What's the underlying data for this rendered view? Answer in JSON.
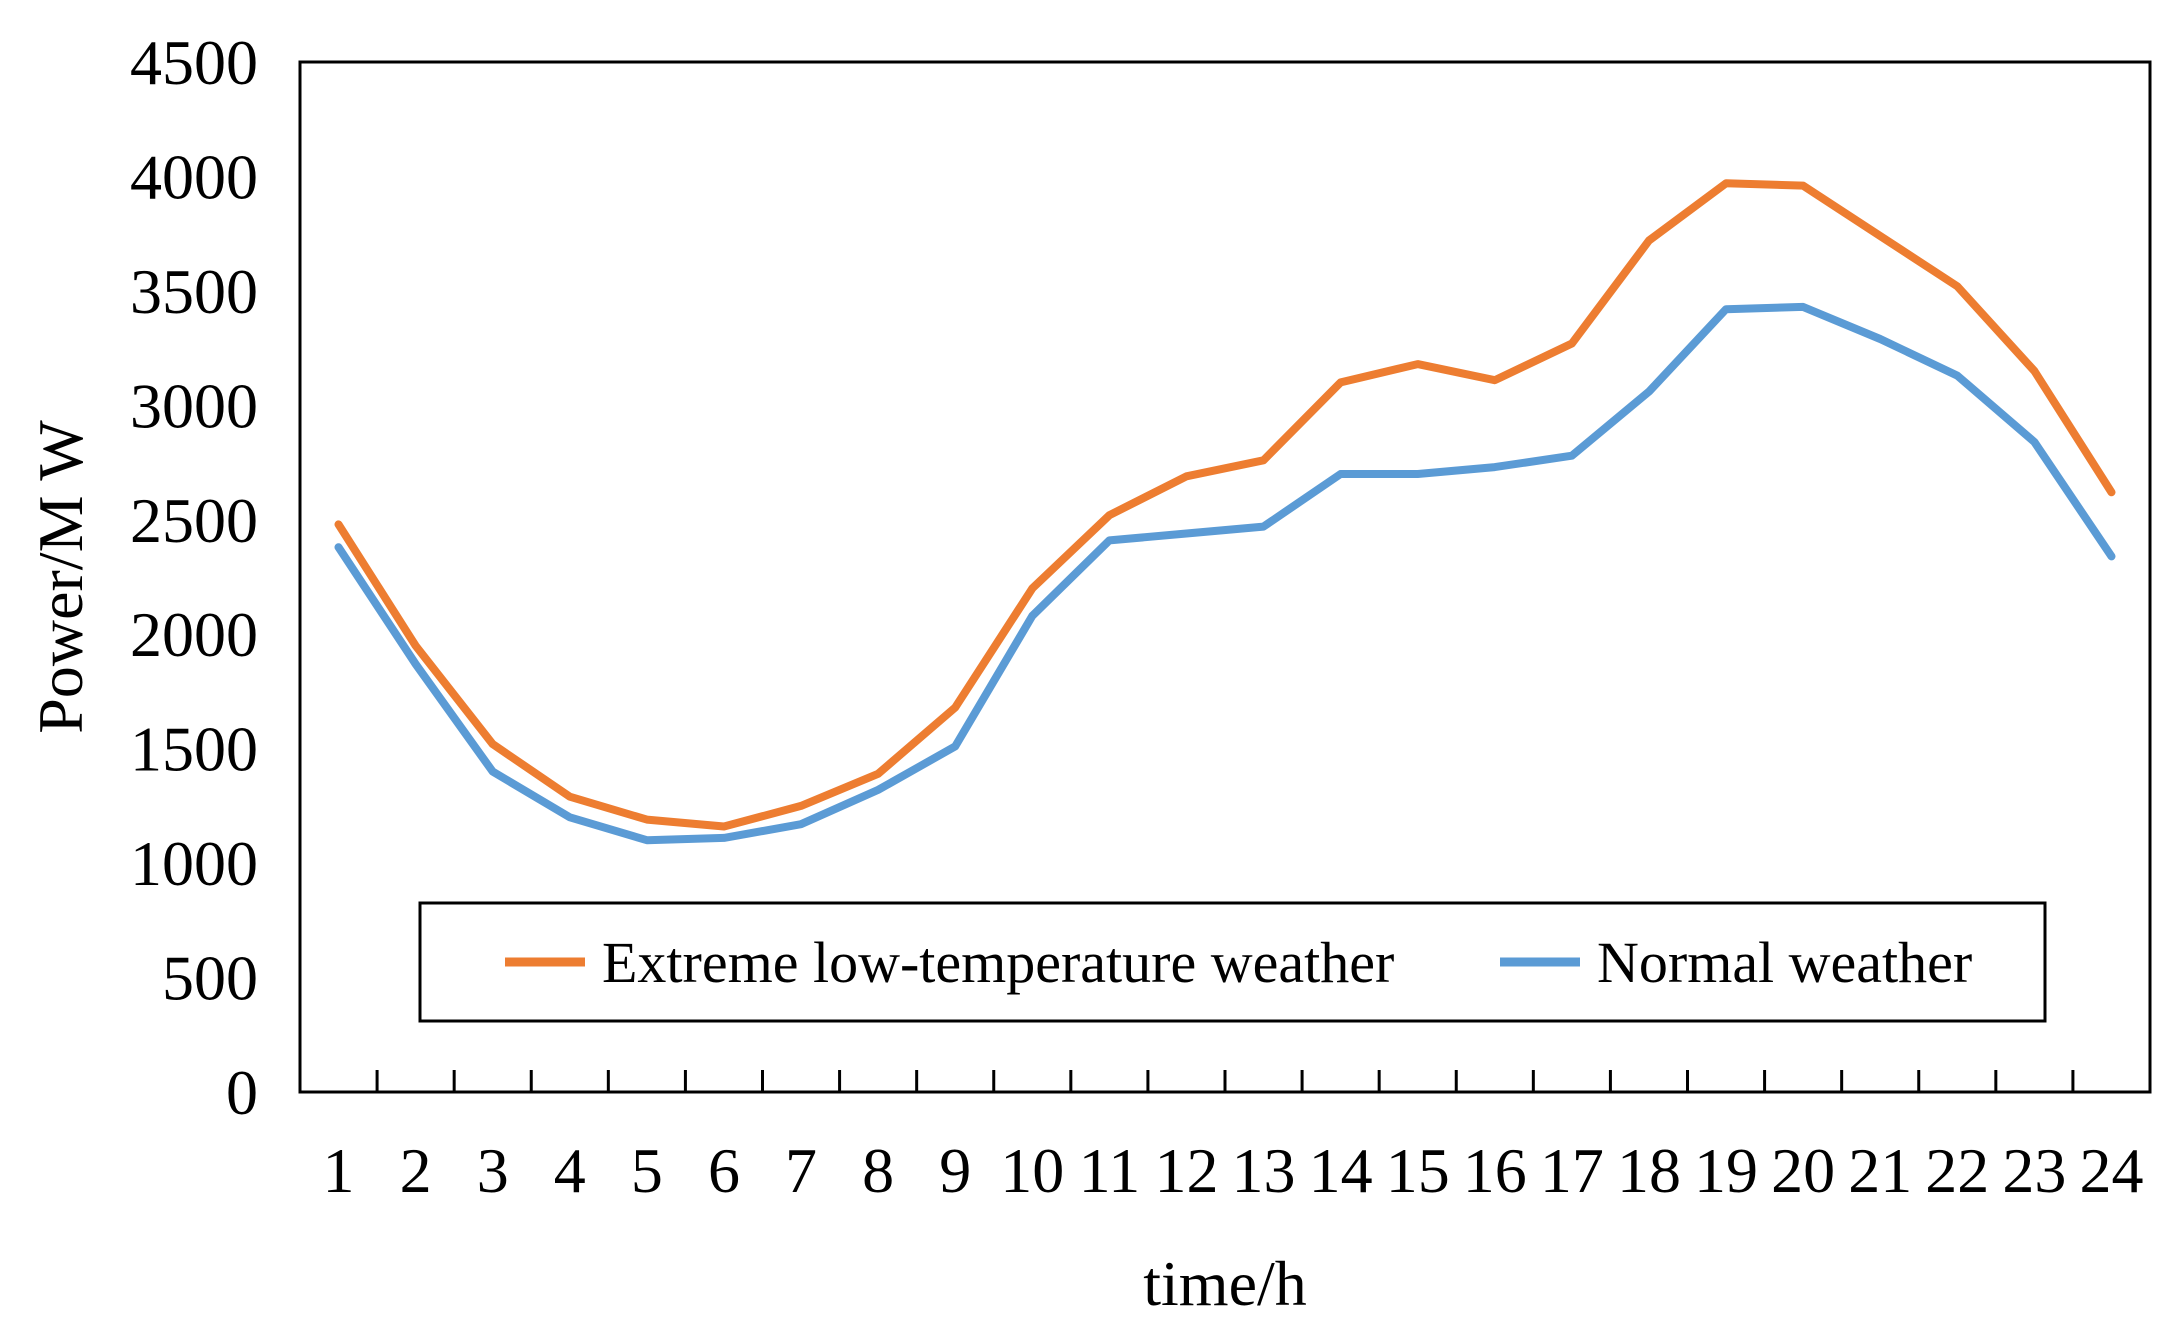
{
  "chart_data": {
    "type": "line",
    "title": "",
    "xlabel": "time/h",
    "ylabel": "Power/M W",
    "x": [
      1,
      2,
      3,
      4,
      5,
      6,
      7,
      8,
      9,
      10,
      11,
      12,
      13,
      14,
      15,
      16,
      17,
      18,
      19,
      20,
      21,
      22,
      23,
      24
    ],
    "ylim": [
      0,
      4500
    ],
    "yticks": [
      0,
      500,
      1000,
      1500,
      2000,
      2500,
      3000,
      3500,
      4000,
      4500
    ],
    "grid": false,
    "legend_position": "lower-center",
    "series": [
      {
        "name": "Extreme low-temperature weather",
        "color": "#ED7D31",
        "values": [
          2480,
          1950,
          1520,
          1290,
          1190,
          1160,
          1250,
          1390,
          1680,
          2200,
          2520,
          2690,
          2760,
          3100,
          3180,
          3110,
          3270,
          3720,
          3970,
          3960,
          3740,
          3520,
          3150,
          2620
        ]
      },
      {
        "name": "Normal weather",
        "color": "#5B9BD5",
        "values": [
          2380,
          1870,
          1400,
          1200,
          1100,
          1110,
          1170,
          1320,
          1510,
          2080,
          2410,
          2440,
          2470,
          2700,
          2700,
          2730,
          2780,
          3060,
          3420,
          3430,
          3290,
          3130,
          2840,
          2340
        ]
      }
    ]
  }
}
